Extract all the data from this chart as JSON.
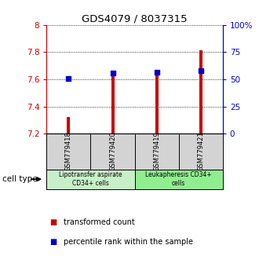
{
  "title": "GDS4079 / 8037315",
  "samples": [
    "GSM779418",
    "GSM779420",
    "GSM779419",
    "GSM779421"
  ],
  "red_values": [
    7.325,
    7.635,
    7.645,
    7.815
  ],
  "blue_values": [
    7.605,
    7.645,
    7.655,
    7.665
  ],
  "ymin": 7.2,
  "ymax": 8.0,
  "yticks_left": [
    7.2,
    7.4,
    7.6,
    7.8,
    8.0
  ],
  "yticks_right": [
    0,
    25,
    50,
    75,
    100
  ],
  "ytick_right_labels": [
    "0",
    "25",
    "50",
    "75",
    "100%"
  ],
  "bar_color": "#cc0000",
  "dot_color": "#0000cc",
  "bg_color": "#ffffff",
  "cell_type_labels": [
    "Lipotransfer aspirate\nCD34+ cells",
    "Leukapheresis CD34+\ncells"
  ],
  "cell_type_colors": [
    "#c8f0c8",
    "#90ee90"
  ],
  "legend_red": "transformed count",
  "legend_blue": "percentile rank within the sample",
  "bar_width": 0.07,
  "dot_size": 25,
  "gsm_bg": "#d3d3d3",
  "x_positions": [
    0,
    1,
    2,
    3
  ]
}
